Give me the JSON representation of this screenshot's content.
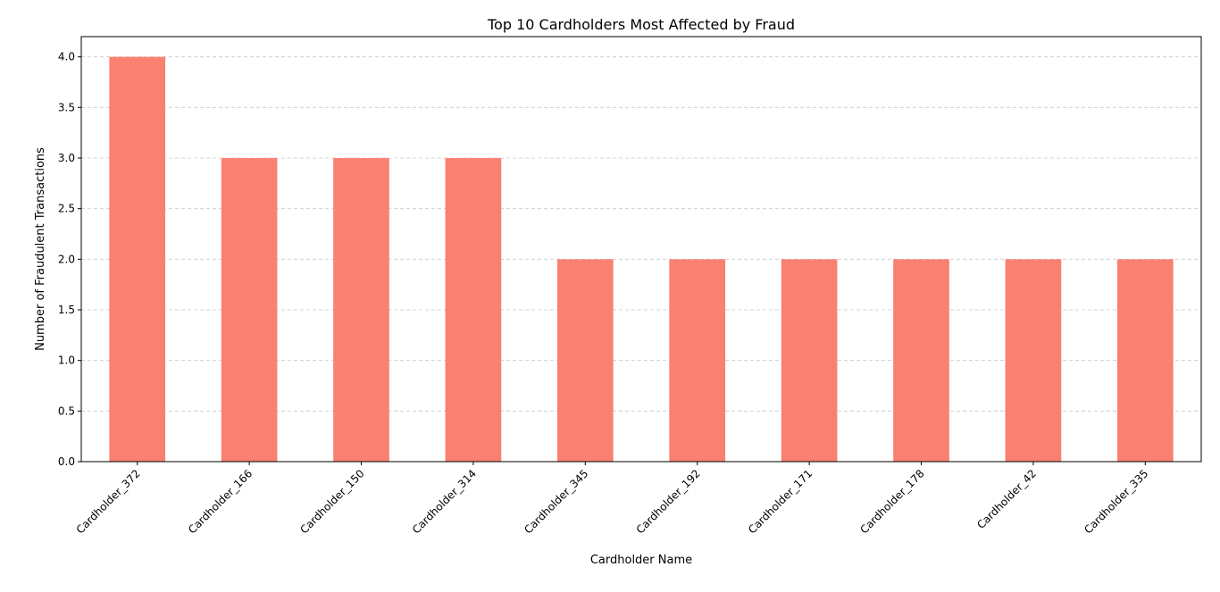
{
  "chart_data": {
    "type": "bar",
    "title": "Top 10 Cardholders Most Affected by Fraud",
    "xlabel": "Cardholder Name",
    "ylabel": "Number of Fraudulent Transactions",
    "categories": [
      "Cardholder_372",
      "Cardholder_166",
      "Cardholder_150",
      "Cardholder_314",
      "Cardholder_345",
      "Cardholder_192",
      "Cardholder_171",
      "Cardholder_178",
      "Cardholder_42",
      "Cardholder_335"
    ],
    "values": [
      4,
      3,
      3,
      3,
      2,
      2,
      2,
      2,
      2,
      2
    ],
    "ylim": [
      0,
      4.2
    ],
    "yticks": [
      "0.0",
      "0.5",
      "1.0",
      "1.5",
      "2.0",
      "2.5",
      "3.0",
      "3.5",
      "4.0"
    ],
    "grid": "y-dashed",
    "bar_color": "#fa8072",
    "grid_color": "#c8c8c8"
  }
}
